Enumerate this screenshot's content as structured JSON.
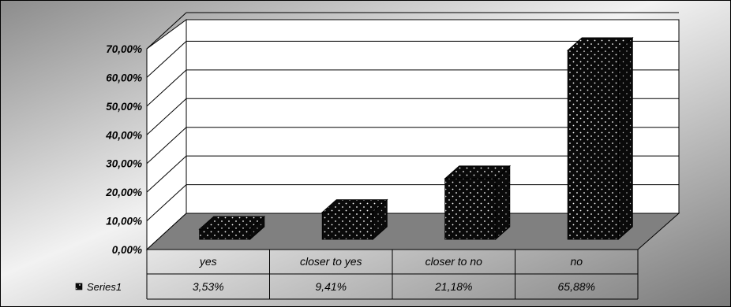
{
  "chart_data": {
    "type": "bar",
    "categories": [
      "yes",
      "closer to yes",
      "closer to no",
      "no"
    ],
    "series": [
      {
        "name": "Series1",
        "values": [
          3.53,
          9.41,
          21.18,
          65.88
        ]
      }
    ],
    "value_labels": [
      "3,53%",
      "9,41%",
      "21,18%",
      "65,88%"
    ],
    "y_ticks": [
      "0,00%",
      "10,00%",
      "20,00%",
      "30,00%",
      "40,00%",
      "50,00%",
      "60,00%",
      "70,00%"
    ],
    "ylim": [
      0,
      70
    ],
    "y_tick_step": 10,
    "grid": true,
    "legend": "data-table",
    "style": "3d-column",
    "bar_color": "#0a0a0a",
    "bar_pattern": "white-dots",
    "floor_color": "#808080",
    "wall_color": "#ffffff",
    "background": "gradient-gray"
  }
}
